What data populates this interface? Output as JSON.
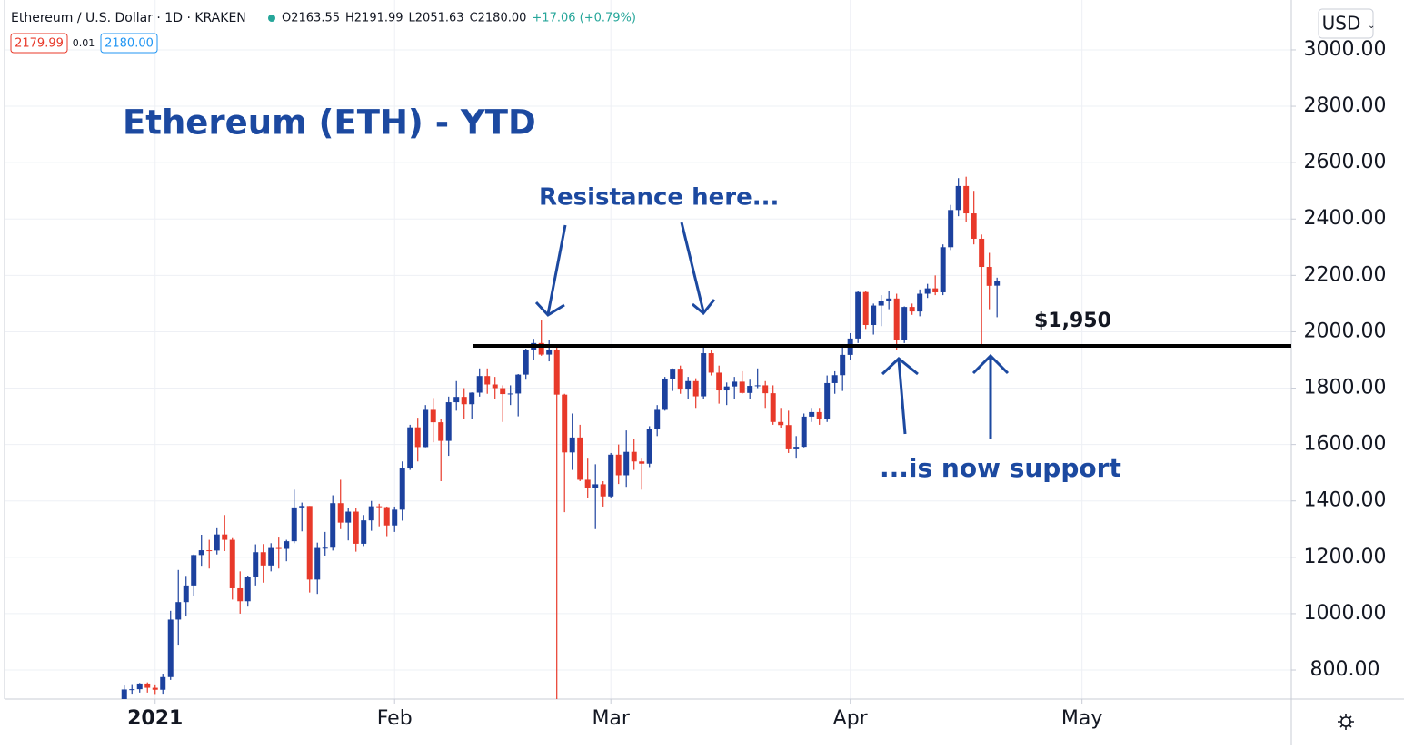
{
  "chart_data": {
    "type": "candlestick",
    "symbol": "Ethereum / U.S. Dollar · 1D · KRAKEN",
    "legend_ohlc": [
      "O2163.55",
      "H2191.99",
      "L2051.63",
      "C2180.00",
      "+17.06 (+0.79%)"
    ],
    "price_boxes": [
      "2179.99",
      "0.01",
      "2180.00"
    ],
    "currency": "USD",
    "title": "Ethereum (ETH) - YTD",
    "annotations": [
      "Resistance here...",
      "...is now support"
    ],
    "hline": {
      "value": 1950,
      "label": "$1,950"
    },
    "up_color": "#1c419e",
    "down_color": "#e8392a",
    "categories": [
      null,
      null,
      null,
      null,
      null,
      null,
      null,
      null,
      null,
      null,
      null,
      null,
      null,
      null,
      null,
      null,
      null,
      null,
      null,
      null,
      null,
      null,
      null,
      null,
      null,
      null,
      null,
      null,
      null,
      null,
      null,
      null,
      null,
      null,
      null,
      null,
      null,
      null,
      null,
      null,
      null,
      null,
      null,
      null,
      null,
      null,
      null,
      null,
      null,
      null,
      null,
      null,
      null,
      null,
      null,
      null,
      null,
      null,
      null,
      null,
      null,
      null,
      null,
      null,
      null,
      null,
      null,
      null,
      null,
      null,
      null,
      null,
      null,
      null,
      null,
      null,
      null,
      null,
      null,
      null,
      null,
      null,
      null,
      null,
      null,
      null,
      null,
      null,
      null,
      null,
      null,
      null,
      null,
      null,
      null,
      null,
      null,
      null,
      null,
      null,
      null,
      null,
      null,
      null,
      null,
      null,
      null,
      null,
      null,
      null,
      null,
      null,
      null,
      null
    ],
    "open": [
      683,
      731,
      732,
      752,
      737,
      730,
      775,
      979,
      1041,
      1100,
      1208,
      1225,
      1224,
      1281,
      1262,
      1090,
      1044,
      1130,
      1218,
      1171,
      1233,
      1230,
      1257,
      1377,
      1382,
      1121,
      1233,
      1234,
      1392,
      1323,
      1362,
      1248,
      1331,
      1381,
      1378,
      1313,
      1369,
      1515,
      1661,
      1591,
      1723,
      1679,
      1613,
      1750,
      1769,
      1743,
      1784,
      1843,
      1813,
      1800,
      1779,
      1781,
      1848,
      1937,
      1960,
      1919,
      1935,
      1777,
      1572,
      1625,
      1475,
      1446,
      1459,
      1416,
      1564,
      1491,
      1574,
      1540,
      1532,
      1654,
      1723,
      1834,
      1869,
      1795,
      1825,
      1771,
      1924,
      1855,
      1792,
      1806,
      1823,
      1783,
      1808,
      1810,
      1782,
      1680,
      1669,
      1583,
      1592,
      1699,
      1715,
      1691,
      1818,
      1846,
      1918,
      1976,
      2141,
      2024,
      2093,
      2110,
      2118,
      1971,
      2088,
      2072,
      2135,
      2154,
      2140,
      2300,
      2432,
      2517,
      2420,
      2330,
      2230,
      2163.55
    ],
    "high": [
      745,
      750,
      754,
      756,
      749,
      787,
      1010,
      1155,
      1134,
      1210,
      1280,
      1262,
      1303,
      1350,
      1268,
      1150,
      1135,
      1246,
      1247,
      1250,
      1270,
      1262,
      1440,
      1394,
      1382,
      1252,
      1290,
      1420,
      1475,
      1376,
      1374,
      1350,
      1400,
      1390,
      1380,
      1380,
      1540,
      1670,
      1695,
      1740,
      1765,
      1690,
      1770,
      1825,
      1800,
      1785,
      1870,
      1870,
      1840,
      1810,
      1810,
      1850,
      1940,
      1975,
      2040,
      1970,
      1950,
      1780,
      1710,
      1670,
      1550,
      1530,
      1470,
      1570,
      1600,
      1650,
      1620,
      1550,
      1665,
      1740,
      1840,
      1870,
      1880,
      1840,
      1835,
      1945,
      1935,
      1880,
      1820,
      1840,
      1860,
      1830,
      1870,
      1825,
      1810,
      1730,
      1720,
      1630,
      1710,
      1730,
      1730,
      1845,
      1860,
      1945,
      1995,
      2145,
      2145,
      2100,
      2130,
      2145,
      2135,
      2090,
      2100,
      2150,
      2170,
      2200,
      2310,
      2450,
      2545,
      2550,
      2500,
      2345,
      2280,
      2191.99
    ],
    "low": [
      683,
      716,
      720,
      720,
      715,
      716,
      765,
      890,
      990,
      1064,
      1170,
      1160,
      1210,
      1222,
      1050,
      1000,
      1025,
      1100,
      1110,
      1150,
      1160,
      1186,
      1250,
      1292,
      1075,
      1070,
      1206,
      1224,
      1300,
      1260,
      1220,
      1240,
      1294,
      1310,
      1275,
      1290,
      1330,
      1510,
      1540,
      1590,
      1608,
      1470,
      1560,
      1720,
      1690,
      1690,
      1770,
      1780,
      1760,
      1680,
      1740,
      1700,
      1830,
      1900,
      1915,
      1895,
      650,
      1360,
      1510,
      1470,
      1410,
      1300,
      1380,
      1410,
      1460,
      1450,
      1510,
      1440,
      1520,
      1630,
      1720,
      1790,
      1780,
      1760,
      1730,
      1760,
      1845,
      1745,
      1740,
      1760,
      1780,
      1760,
      1800,
      1730,
      1670,
      1660,
      1570,
      1550,
      1590,
      1680,
      1670,
      1680,
      1780,
      1790,
      1900,
      1960,
      2010,
      1990,
      2020,
      2080,
      1935,
      1960,
      2060,
      2055,
      2120,
      2130,
      2130,
      2290,
      2410,
      2390,
      2310,
      1950,
      2080,
      2051.63
    ],
    "close": [
      731,
      732,
      752,
      737,
      730,
      775,
      979,
      1041,
      1100,
      1208,
      1225,
      1224,
      1281,
      1262,
      1090,
      1044,
      1130,
      1218,
      1171,
      1233,
      1230,
      1257,
      1377,
      1382,
      1121,
      1233,
      1234,
      1392,
      1323,
      1362,
      1248,
      1331,
      1381,
      1378,
      1313,
      1369,
      1515,
      1661,
      1591,
      1723,
      1679,
      1613,
      1750,
      1769,
      1743,
      1784,
      1843,
      1813,
      1800,
      1779,
      1781,
      1848,
      1937,
      1960,
      1919,
      1935,
      1777,
      1572,
      1625,
      1475,
      1446,
      1459,
      1416,
      1564,
      1491,
      1574,
      1540,
      1532,
      1654,
      1723,
      1834,
      1869,
      1795,
      1825,
      1771,
      1924,
      1855,
      1792,
      1806,
      1823,
      1783,
      1808,
      1810,
      1782,
      1680,
      1669,
      1583,
      1592,
      1699,
      1715,
      1691,
      1818,
      1846,
      1918,
      1976,
      2141,
      2024,
      2093,
      2110,
      2118,
      1971,
      2088,
      2072,
      2135,
      2154,
      2140,
      2300,
      2432,
      2517,
      2420,
      2330,
      2230,
      2163,
      2180.0
    ],
    "xlim": [
      -15.5,
      151.1
    ],
    "xticks": [
      {
        "value": 4,
        "label": "2021"
      },
      {
        "value": 35,
        "label": "Feb"
      },
      {
        "value": 63,
        "label": "Mar"
      },
      {
        "value": 94,
        "label": "Apr"
      },
      {
        "value": 124,
        "label": "May"
      }
    ],
    "ylim": [
      697,
      3177
    ],
    "yticks": [
      {
        "value": 800,
        "label": "800.00"
      },
      {
        "value": 1000,
        "label": "1000.00"
      },
      {
        "value": 1200,
        "label": "1200.00"
      },
      {
        "value": 1400,
        "label": "1400.00"
      },
      {
        "value": 1600,
        "label": "1600.00"
      },
      {
        "value": 1800,
        "label": "1800.00"
      },
      {
        "value": 2000,
        "label": "2000.00"
      },
      {
        "value": 2200,
        "label": "2200.00"
      },
      {
        "value": 2400,
        "label": "2400.00"
      },
      {
        "value": 2600,
        "label": "2600.00"
      },
      {
        "value": 2800,
        "label": "2800.00"
      },
      {
        "value": 3000,
        "label": "3000.00"
      }
    ],
    "grid": true
  }
}
